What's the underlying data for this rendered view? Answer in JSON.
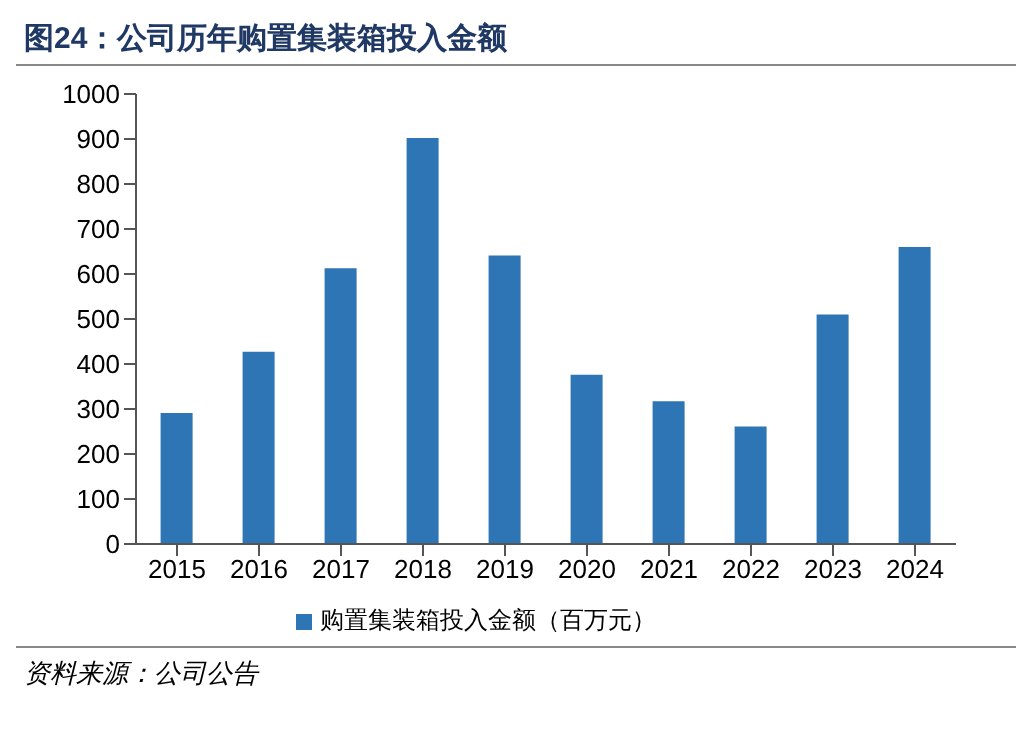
{
  "chart_data": {
    "type": "bar",
    "title": "图24：公司历年购置集装箱投入金额",
    "categories": [
      "2015",
      "2016",
      "2017",
      "2018",
      "2019",
      "2020",
      "2021",
      "2022",
      "2023",
      "2024"
    ],
    "series": [
      {
        "name": "购置集装箱投入金额（百万元）",
        "color": "#2e75b6",
        "values": [
          291,
          427,
          613,
          902,
          641,
          376,
          317,
          261,
          510,
          660
        ]
      }
    ],
    "ylim": [
      0,
      1000
    ],
    "yticks": [
      0,
      100,
      200,
      300,
      400,
      500,
      600,
      700,
      800,
      900,
      1000
    ],
    "grid": false,
    "legend": "bottom",
    "annotations": [
      "资料来源：公司公告"
    ]
  }
}
